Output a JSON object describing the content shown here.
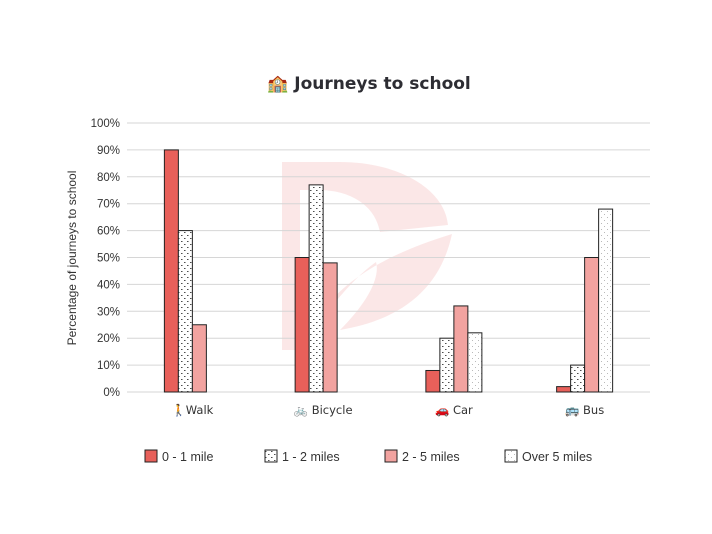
{
  "chart_data": {
    "type": "bar",
    "title": "🏫 Journeys to school",
    "ylabel": "Percentage of journeys to school",
    "xlabel": "",
    "categories": [
      "🚶Walk",
      "🚲 Bicycle",
      "🚗 Car",
      "🚌 Bus"
    ],
    "series": [
      {
        "name": "0 - 1 mile",
        "values": [
          90,
          50,
          8,
          2
        ],
        "fill": "#e8605a",
        "pattern": "solid"
      },
      {
        "name": "1 - 2 miles",
        "values": [
          60,
          77,
          20,
          10
        ],
        "fill": "#ffffff",
        "pattern": "dots"
      },
      {
        "name": "2 - 5 miles",
        "values": [
          25,
          48,
          32,
          50
        ],
        "fill": "#f2a3a0",
        "pattern": "solid"
      },
      {
        "name": "Over 5 miles",
        "values": [
          0,
          0,
          22,
          68
        ],
        "fill": "#ffffff",
        "pattern": "light-dots"
      }
    ],
    "ylim": [
      0,
      100
    ],
    "yticks": [
      "0%",
      "10%",
      "20%",
      "30%",
      "40%",
      "50%",
      "60%",
      "70%",
      "80%",
      "90%",
      "100%"
    ],
    "grid": true,
    "legend_position": "bottom"
  }
}
